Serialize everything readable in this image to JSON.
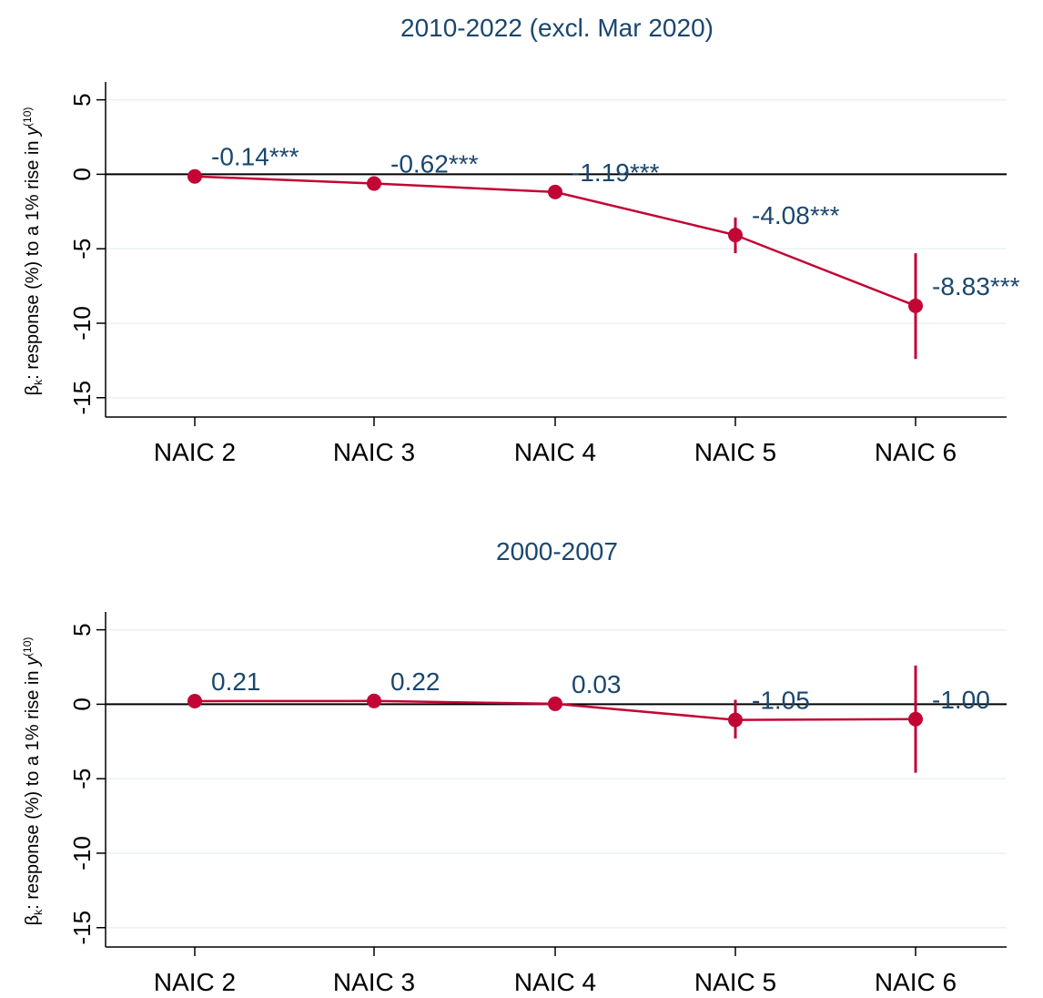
{
  "figure": {
    "ylabel_main": "β",
    "ylabel_sub": "k",
    "ylabel_rest": ": response (%) to a 1% rise in ",
    "ylabel_var": "y",
    "ylabel_sup": "(10)"
  },
  "chart_data": [
    {
      "type": "line",
      "title": "2010-2022 (excl. Mar 2020)",
      "categories": [
        "NAIC 2",
        "NAIC 3",
        "NAIC 4",
        "NAIC 5",
        "NAIC 6"
      ],
      "yticks": [
        5,
        0,
        -5,
        -10,
        -15
      ],
      "ylim": [
        -16.3,
        6.2
      ],
      "reference_line": 0,
      "grid": true,
      "series": [
        {
          "values": [
            -0.14,
            -0.62,
            -1.19,
            -4.08,
            -8.83
          ],
          "ci_low": [
            -0.2,
            -0.7,
            -1.3,
            -5.3,
            -12.4
          ],
          "ci_high": [
            -0.08,
            -0.54,
            -1.08,
            -2.9,
            -5.3
          ],
          "labels": [
            "-0.14***",
            "-0.62***",
            "-1.19***",
            "-4.08***",
            "-8.83***"
          ]
        }
      ],
      "colors": {
        "series": "#c10534",
        "labels": "#1a476f",
        "grid": "#eaf2f3"
      }
    },
    {
      "type": "line",
      "title": "2000-2007",
      "categories": [
        "NAIC 2",
        "NAIC 3",
        "NAIC 4",
        "NAIC 5",
        "NAIC 6"
      ],
      "yticks": [
        5,
        0,
        -5,
        -10,
        -15
      ],
      "ylim": [
        -16.3,
        6.2
      ],
      "reference_line": 0,
      "grid": true,
      "series": [
        {
          "values": [
            0.21,
            0.22,
            0.03,
            -1.05,
            -1.0
          ],
          "ci_low": [
            0.18,
            0.19,
            0.0,
            -2.3,
            -4.6
          ],
          "ci_high": [
            0.24,
            0.25,
            0.06,
            0.3,
            2.6
          ],
          "labels": [
            "0.21",
            "0.22",
            "0.03",
            "-1.05",
            "-1.00"
          ]
        }
      ],
      "colors": {
        "series": "#c10534",
        "labels": "#1a476f",
        "grid": "#eaf2f3"
      }
    }
  ]
}
